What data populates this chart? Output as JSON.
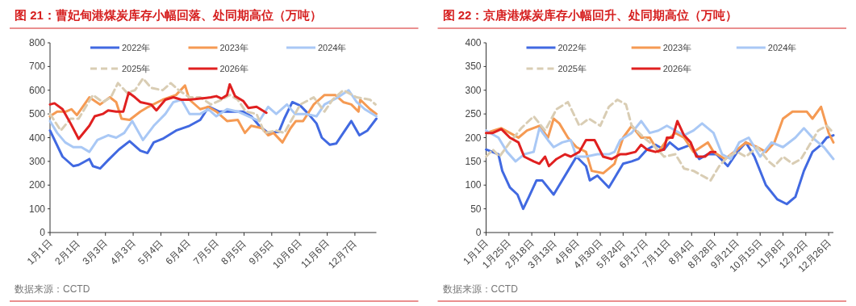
{
  "chart_data": [
    {
      "type": "line",
      "title": "图 21：曹妃甸港煤炭库存小幅回落、处同期高位（万吨）",
      "annotations": [
        "数据来源：CCTD"
      ],
      "xlim": [
        "--01-01",
        "--12-31"
      ],
      "xticks": [
        {
          "value": "--01-01",
          "label": "1月1日"
        },
        {
          "value": "--02-01",
          "label": "2月1日"
        },
        {
          "value": "--03-03",
          "label": "3月3日"
        },
        {
          "value": "--04-03",
          "label": "4月3日"
        },
        {
          "value": "--05-04",
          "label": "5月4日"
        },
        {
          "value": "--06-04",
          "label": "6月4日"
        },
        {
          "value": "--07-05",
          "label": "7月5日"
        },
        {
          "value": "--08-05",
          "label": "8月5日"
        },
        {
          "value": "--09-05",
          "label": "9月5日"
        },
        {
          "value": "--10-06",
          "label": "10月6日"
        },
        {
          "value": "--11-06",
          "label": "11月6日"
        },
        {
          "value": "--12-07",
          "label": "12月7日"
        }
      ],
      "ylim": [
        0,
        800
      ],
      "yticks": [
        0,
        100,
        200,
        300,
        400,
        500,
        600,
        700,
        800
      ],
      "legend": "top",
      "series": [
        {
          "name": "2022年",
          "color": "#4169e1",
          "x": [
            "--01-01",
            "--01-15",
            "--01-27",
            "--02-02",
            "--02-14",
            "--02-18",
            "--02-26",
            "--03-06",
            "--03-18",
            "--03-30",
            "--04-11",
            "--04-19",
            "--04-26",
            "--05-06",
            "--05-21",
            "--06-05",
            "--06-17",
            "--06-23",
            "--06-27",
            "--07-08",
            "--07-20",
            "--08-04",
            "--08-13",
            "--08-22",
            "--09-01",
            "--09-13",
            "--09-19",
            "--09-28",
            "--10-07",
            "--10-16",
            "--10-25",
            "--10-31",
            "--11-09",
            "--11-16",
            "--11-24",
            "--12-03",
            "--12-12",
            "--12-21",
            "--12-31"
          ],
          "values": [
            430,
            320,
            280,
            285,
            310,
            280,
            270,
            305,
            350,
            385,
            345,
            335,
            380,
            395,
            430,
            450,
            475,
            510,
            530,
            510,
            510,
            510,
            490,
            450,
            420,
            425,
            480,
            550,
            535,
            500,
            460,
            400,
            370,
            375,
            420,
            470,
            410,
            430,
            480
          ]
        },
        {
          "name": "2023年",
          "color": "#f59a53",
          "x": [
            "--01-01",
            "--01-09",
            "--01-19",
            "--01-25",
            "--01-31",
            "--02-14",
            "--02-26",
            "--03-08",
            "--03-15",
            "--03-21",
            "--03-30",
            "--04-11",
            "--04-20",
            "--05-06",
            "--05-21",
            "--05-31",
            "--06-05",
            "--06-17",
            "--06-26",
            "--07-05",
            "--07-17",
            "--07-29",
            "--08-06",
            "--08-13",
            "--08-25",
            "--09-01",
            "--09-07",
            "--09-17",
            "--09-26",
            "--10-02",
            "--10-10",
            "--10-22",
            "--11-03",
            "--11-15",
            "--11-24",
            "--12-03",
            "--12-11",
            "--12-13",
            "--12-24",
            "--12-31"
          ],
          "values": [
            490,
            510,
            510,
            520,
            495,
            570,
            540,
            570,
            550,
            480,
            475,
            510,
            530,
            560,
            580,
            620,
            560,
            520,
            530,
            510,
            470,
            475,
            420,
            450,
            440,
            410,
            420,
            380,
            440,
            470,
            470,
            540,
            580,
            580,
            550,
            540,
            510,
            560,
            520,
            500
          ]
        },
        {
          "name": "2024年",
          "color": "#a9c8f5",
          "x": [
            "--01-01",
            "--01-09",
            "--01-18",
            "--01-27",
            "--02-05",
            "--02-14",
            "--02-23",
            "--03-06",
            "--03-15",
            "--03-24",
            "--04-02",
            "--04-14",
            "--04-26",
            "--05-09",
            "--05-18",
            "--05-27",
            "--06-05",
            "--06-17",
            "--06-26",
            "--07-05",
            "--07-17",
            "--07-29",
            "--08-10",
            "--08-22",
            "--09-01",
            "--09-10",
            "--09-22",
            "--10-01",
            "--10-13",
            "--10-25",
            "--11-03",
            "--11-18",
            "--11-30",
            "--12-09",
            "--12-18",
            "--12-31"
          ],
          "values": [
            470,
            420,
            380,
            360,
            360,
            340,
            390,
            410,
            400,
            420,
            470,
            390,
            450,
            500,
            550,
            560,
            500,
            500,
            520,
            490,
            520,
            510,
            490,
            470,
            530,
            500,
            540,
            500,
            500,
            490,
            540,
            570,
            600,
            550,
            520,
            490
          ]
        },
        {
          "name": "2025年",
          "color": "#d9cdb4",
          "line_style": "dashed",
          "x": [
            "--01-01",
            "--01-13",
            "--01-24",
            "--02-02",
            "--02-18",
            "--02-29",
            "--03-09",
            "--03-17",
            "--03-27",
            "--04-05",
            "--04-14",
            "--04-23",
            "--05-06",
            "--05-15",
            "--05-24",
            "--06-05",
            "--06-17",
            "--06-29",
            "--07-11",
            "--07-20",
            "--07-29",
            "--08-07",
            "--08-19",
            "--08-28",
            "--09-10",
            "--09-19",
            "--09-28",
            "--10-07",
            "--10-22",
            "--11-03",
            "--11-12",
            "--11-24",
            "--12-09",
            "--12-24",
            "--12-30"
          ],
          "values": [
            500,
            430,
            480,
            480,
            580,
            550,
            570,
            630,
            590,
            600,
            650,
            610,
            600,
            630,
            600,
            570,
            570,
            540,
            560,
            580,
            560,
            510,
            500,
            420,
            430,
            420,
            480,
            540,
            570,
            510,
            560,
            600,
            570,
            560,
            540
          ]
        },
        {
          "name": "2026年",
          "color": "#e02020",
          "x": [
            "--01-01",
            "--01-06",
            "--01-15",
            "--01-24",
            "--02-02",
            "--02-14",
            "--02-20",
            "--02-29",
            "--03-06",
            "--03-15",
            "--03-23",
            "--03-29",
            "--04-05",
            "--04-11",
            "--04-23",
            "--04-29",
            "--05-09",
            "--05-18",
            "--05-27",
            "--06-05",
            "--06-17",
            "--06-29",
            "--07-05",
            "--07-11",
            "--07-17",
            "--07-20",
            "--07-26",
            "--08-04",
            "--08-10",
            "--08-19",
            "--08-30"
          ],
          "values": [
            540,
            545,
            520,
            460,
            395,
            450,
            490,
            500,
            515,
            510,
            510,
            590,
            570,
            550,
            540,
            515,
            560,
            570,
            560,
            560,
            565,
            570,
            575,
            565,
            580,
            625,
            575,
            555,
            525,
            530,
            505
          ]
        }
      ]
    },
    {
      "type": "line",
      "title": "图 22：京唐港煤炭库存小幅回升、处同期高位（万吨）",
      "annotations": [
        "数据来源：CCTD"
      ],
      "xlim": [
        "--01-01",
        "--12-31"
      ],
      "xticks": [
        {
          "value": "--01-01",
          "label": "1月1日"
        },
        {
          "value": "--01-25",
          "label": "1月25日"
        },
        {
          "value": "--02-18",
          "label": "2月18日"
        },
        {
          "value": "--03-13",
          "label": "3月13日"
        },
        {
          "value": "--04-06",
          "label": "4月6日"
        },
        {
          "value": "--04-30",
          "label": "4月30日"
        },
        {
          "value": "--05-24",
          "label": "5月24日"
        },
        {
          "value": "--06-17",
          "label": "6月17日"
        },
        {
          "value": "--07-11",
          "label": "7月11日"
        },
        {
          "value": "--08-04",
          "label": "8月4日"
        },
        {
          "value": "--08-28",
          "label": "8月28日"
        },
        {
          "value": "--09-21",
          "label": "9月21日"
        },
        {
          "value": "--10-15",
          "label": "10月15日"
        },
        {
          "value": "--11-08",
          "label": "11月8日"
        },
        {
          "value": "--12-02",
          "label": "12月2日"
        },
        {
          "value": "--12-26",
          "label": "12月26日"
        }
      ],
      "ylim": [
        0,
        400
      ],
      "yticks": [
        0,
        50,
        100,
        150,
        200,
        250,
        300,
        350,
        400
      ],
      "legend": "top",
      "series": [
        {
          "name": "2022年",
          "color": "#4169e1",
          "x": [
            "--01-01",
            "--01-14",
            "--01-18",
            "--01-26",
            "--02-03",
            "--02-09",
            "--02-15",
            "--02-23",
            "--02-29",
            "--03-12",
            "--03-18",
            "--03-27",
            "--04-05",
            "--04-15",
            "--04-19",
            "--04-27",
            "--05-09",
            "--05-15",
            "--05-24",
            "--06-02",
            "--06-09",
            "--06-18",
            "--06-27",
            "--07-06",
            "--07-12",
            "--07-21",
            "--08-03",
            "--08-12",
            "--08-21",
            "--08-30",
            "--09-11",
            "--09-21",
            "--09-30",
            "--10-09",
            "--10-21",
            "--11-02",
            "--11-12",
            "--11-21",
            "--11-30",
            "--12-09",
            "--12-18",
            "--12-24",
            "--12-31"
          ],
          "values": [
            175,
            165,
            130,
            95,
            80,
            50,
            75,
            110,
            110,
            80,
            100,
            130,
            160,
            140,
            110,
            120,
            95,
            115,
            145,
            150,
            155,
            175,
            185,
            175,
            190,
            175,
            185,
            155,
            165,
            165,
            140,
            170,
            190,
            160,
            100,
            70,
            60,
            75,
            130,
            170,
            185,
            200,
            205
          ]
        },
        {
          "name": "2023年",
          "color": "#f59a53",
          "x": [
            "--01-01",
            "--01-17",
            "--01-26",
            "--02-04",
            "--02-13",
            "--02-26",
            "--03-06",
            "--03-12",
            "--03-18",
            "--03-27",
            "--04-05",
            "--04-15",
            "--04-21",
            "--05-03",
            "--05-15",
            "--05-24",
            "--06-02",
            "--06-12",
            "--06-21",
            "--06-30",
            "--07-09",
            "--07-18",
            "--07-27",
            "--08-06",
            "--08-21",
            "--08-27",
            "--09-08",
            "--09-21",
            "--09-30",
            "--10-12",
            "--10-21",
            "--10-30",
            "--11-08",
            "--11-18",
            "--12-03",
            "--12-09",
            "--12-18",
            "--12-26",
            "--12-31"
          ],
          "values": [
            210,
            220,
            210,
            200,
            215,
            225,
            200,
            240,
            230,
            200,
            180,
            170,
            130,
            125,
            145,
            200,
            225,
            200,
            200,
            170,
            195,
            210,
            200,
            170,
            190,
            170,
            155,
            175,
            190,
            180,
            170,
            190,
            240,
            255,
            255,
            240,
            265,
            210,
            190
          ]
        },
        {
          "name": "2024年",
          "color": "#a9c8f5",
          "x": [
            "--01-01",
            "--01-14",
            "--01-23",
            "--02-01",
            "--02-10",
            "--02-20",
            "--02-26",
            "--03-06",
            "--03-12",
            "--03-21",
            "--03-30",
            "--04-05",
            "--04-15",
            "--04-27",
            "--05-09",
            "--05-15",
            "--05-21",
            "--06-02",
            "--06-12",
            "--06-21",
            "--06-30",
            "--07-09",
            "--07-18",
            "--07-27",
            "--08-06",
            "--08-15",
            "--08-27",
            "--09-05",
            "--09-14",
            "--09-23",
            "--10-03",
            "--10-15",
            "--10-27",
            "--11-08",
            "--11-21",
            "--11-30",
            "--12-09",
            "--12-21",
            "--12-31"
          ],
          "values": [
            215,
            200,
            170,
            150,
            165,
            170,
            220,
            195,
            180,
            190,
            195,
            160,
            160,
            165,
            165,
            170,
            195,
            210,
            235,
            210,
            215,
            225,
            215,
            205,
            215,
            230,
            210,
            165,
            155,
            190,
            200,
            160,
            190,
            180,
            200,
            220,
            200,
            180,
            155
          ]
        },
        {
          "name": "2025年",
          "color": "#d9cdb4",
          "line_style": "dashed",
          "x": [
            "--01-01",
            "--01-08",
            "--01-15",
            "--01-26",
            "--02-07",
            "--02-20",
            "--03-03",
            "--03-15",
            "--03-27",
            "--04-08",
            "--04-18",
            "--04-30",
            "--05-09",
            "--05-18",
            "--05-27",
            "--06-02",
            "--06-15",
            "--06-27",
            "--07-06",
            "--07-18",
            "--07-27",
            "--08-06",
            "--08-15",
            "--08-24",
            "--09-02",
            "--09-11",
            "--09-21",
            "--09-30",
            "--10-12",
            "--10-24",
            "--10-30",
            "--11-08",
            "--11-18",
            "--11-27",
            "--12-06",
            "--12-15",
            "--12-24",
            "--12-31"
          ],
          "values": [
            160,
            175,
            160,
            190,
            220,
            245,
            215,
            260,
            275,
            225,
            240,
            225,
            265,
            280,
            270,
            225,
            200,
            180,
            160,
            165,
            135,
            130,
            120,
            110,
            140,
            160,
            170,
            160,
            180,
            150,
            140,
            160,
            145,
            155,
            185,
            215,
            225,
            210
          ]
        },
        {
          "name": "2026年",
          "color": "#e02020",
          "x": [
            "--01-01",
            "--01-08",
            "--01-17",
            "--01-26",
            "--02-04",
            "--02-10",
            "--02-20",
            "--02-26",
            "--03-03",
            "--03-07",
            "--03-15",
            "--03-24",
            "--03-30",
            "--04-08",
            "--04-15",
            "--04-24",
            "--05-03",
            "--05-12",
            "--05-21",
            "--05-27",
            "--06-06",
            "--06-12",
            "--06-18",
            "--06-27",
            "--07-06",
            "--07-09",
            "--07-15",
            "--07-20",
            "--07-27",
            "--08-03",
            "--08-09",
            "--08-18",
            "--08-24",
            "--08-29"
          ],
          "values": [
            210,
            210,
            218,
            200,
            190,
            160,
            150,
            145,
            160,
            140,
            155,
            165,
            160,
            170,
            195,
            195,
            160,
            155,
            165,
            165,
            170,
            185,
            175,
            170,
            175,
            200,
            200,
            235,
            205,
            190,
            160,
            160,
            170,
            170
          ]
        }
      ]
    }
  ]
}
